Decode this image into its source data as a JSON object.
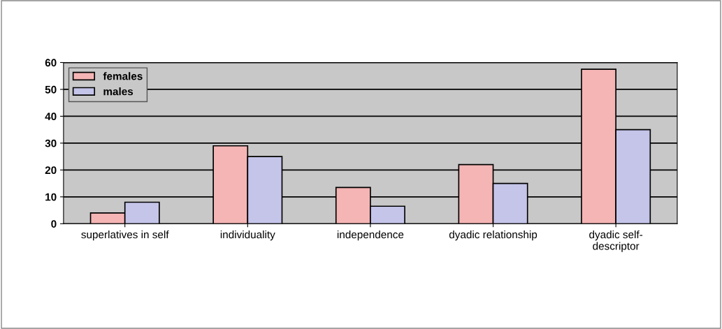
{
  "chart_data": {
    "type": "bar",
    "categories": [
      "superlatives in self",
      "individuality",
      "independence",
      "dyadic relationship",
      "dyadic self-\ndescriptor"
    ],
    "series": [
      {
        "name": "females",
        "color": "#f5b5b5",
        "values": [
          4,
          29,
          13.5,
          22,
          57.5
        ]
      },
      {
        "name": "males",
        "color": "#c5c5ea",
        "values": [
          8,
          25,
          6.5,
          15,
          35
        ]
      }
    ],
    "ylim": [
      0,
      60
    ],
    "yticks": [
      0,
      10,
      20,
      30,
      40,
      50,
      60
    ],
    "grid": "y",
    "legend": "top left"
  }
}
